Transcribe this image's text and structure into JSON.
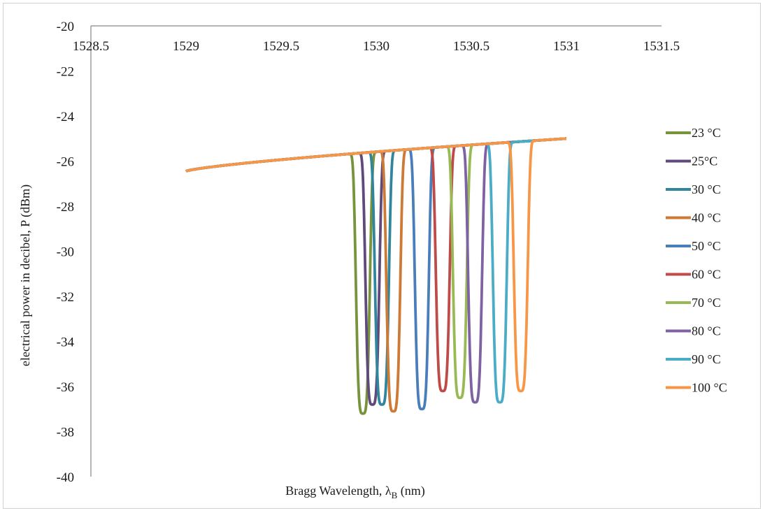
{
  "chart_data": {
    "type": "line",
    "title": "",
    "xlabel": "Bragg Wavelength, λB (nm)",
    "xlabel_main": "Bragg Wavelength, λ",
    "xlabel_sub": "B",
    "xlabel_unit": " (nm)",
    "ylabel": "electrical power in decibel, P (dBm)",
    "xlim": [
      1528.5,
      1531.5
    ],
    "ylim": [
      -40,
      -20
    ],
    "x_ticks": [
      1528.5,
      1529,
      1529.5,
      1530,
      1530.5,
      1531,
      1531.5
    ],
    "x_tick_labels": [
      "1528.5",
      "1529",
      "1529.5",
      "1530",
      "1530.5",
      "1531",
      "1531.5"
    ],
    "y_ticks": [
      -20,
      -22,
      -24,
      -26,
      -28,
      -30,
      -32,
      -34,
      -36,
      -38,
      -40
    ],
    "y_tick_labels": [
      "-20",
      "-22",
      "-24",
      "-26",
      "-28",
      "-30",
      "-32",
      "-34",
      "-36",
      "-38",
      "-40"
    ],
    "x_axis_position": "top",
    "grid": false,
    "legend_position": "right",
    "x_range": [
      1529,
      1531
    ],
    "series": [
      {
        "name": "23 °C",
        "color": "#77933c",
        "center": 1529.93,
        "depth": -37.2
      },
      {
        "name": "25°C",
        "color": "#604a7b",
        "center": 1529.98,
        "depth": -36.8
      },
      {
        "name": "30 °C",
        "color": "#31859c",
        "center": 1530.03,
        "depth": -36.8
      },
      {
        "name": "40 °C",
        "color": "#cc7a36",
        "center": 1530.09,
        "depth": -37.1
      },
      {
        "name": "50 °C",
        "color": "#4a7ebb",
        "center": 1530.24,
        "depth": -37.0
      },
      {
        "name": "60 °C",
        "color": "#be4b48",
        "center": 1530.35,
        "depth": -36.2
      },
      {
        "name": "70 °C",
        "color": "#98b954",
        "center": 1530.44,
        "depth": -36.5
      },
      {
        "name": "80 °C",
        "color": "#7e62a1",
        "center": 1530.52,
        "depth": -36.7
      },
      {
        "name": "90 °C",
        "color": "#4bacc6",
        "center": 1530.65,
        "depth": -36.7
      },
      {
        "name": "100 °C",
        "color": "#f79646",
        "center": 1530.76,
        "depth": -36.2
      }
    ]
  }
}
